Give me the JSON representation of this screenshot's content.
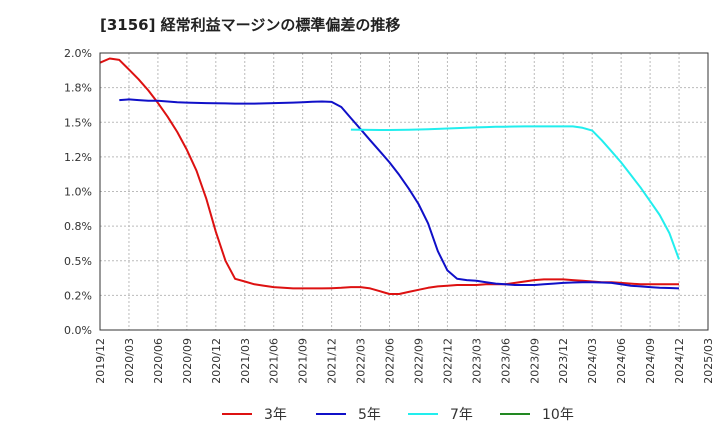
{
  "chart_data": {
    "type": "line",
    "title": "[3156]  経常利益マージンの標準偏差の推移",
    "ylim": [
      0.0,
      2.0
    ],
    "yticks": [
      "0.0%",
      "0.2%",
      "0.5%",
      "0.8%",
      "1.0%",
      "1.2%",
      "1.5%",
      "1.8%",
      "2.0%"
    ],
    "yticks_values": [
      0.0,
      0.25,
      0.5,
      0.75,
      1.0,
      1.25,
      1.5,
      1.75,
      2.0
    ],
    "xticks": [
      "2019/12",
      "2020/03",
      "2020/06",
      "2020/09",
      "2020/12",
      "2021/03",
      "2021/06",
      "2021/09",
      "2021/12",
      "2022/03",
      "2022/06",
      "2022/09",
      "2022/12",
      "2023/03",
      "2023/06",
      "2023/09",
      "2023/12",
      "2024/03",
      "2024/06",
      "2024/09",
      "2024/12",
      "2025/03"
    ],
    "grid": true,
    "legend_position": "bottom",
    "series": [
      {
        "name": "3年",
        "color": "#dd1111",
        "x": [
          0,
          1,
          2,
          3,
          4,
          5,
          6,
          7,
          8,
          9,
          10,
          11,
          12,
          13,
          14,
          15,
          16,
          17,
          18,
          19,
          20,
          21,
          22,
          23,
          24,
          25,
          26,
          27,
          28,
          29,
          30,
          31,
          32,
          33,
          34,
          35,
          36,
          37,
          38,
          39,
          40,
          41,
          42,
          43,
          44,
          45,
          46,
          47,
          48,
          49,
          50,
          51,
          52,
          53,
          54,
          55,
          56,
          57,
          58,
          59,
          60
        ],
        "values": [
          1.93,
          1.96,
          1.95,
          1.88,
          1.81,
          1.73,
          1.64,
          1.54,
          1.43,
          1.3,
          1.15,
          0.95,
          0.71,
          0.5,
          0.37,
          0.35,
          0.33,
          0.32,
          0.31,
          0.305,
          0.3,
          0.3,
          0.3,
          0.3,
          0.302,
          0.305,
          0.31,
          0.31,
          0.3,
          0.28,
          0.26,
          0.26,
          0.275,
          0.29,
          0.305,
          0.315,
          0.32,
          0.325,
          0.325,
          0.325,
          0.33,
          0.33,
          0.33,
          0.34,
          0.35,
          0.36,
          0.365,
          0.365,
          0.365,
          0.36,
          0.355,
          0.35,
          0.345,
          0.345,
          0.34,
          0.335,
          0.33,
          0.33,
          0.33,
          0.33,
          0.33
        ]
      },
      {
        "name": "5年",
        "color": "#1010c8",
        "x": [
          2,
          3,
          4,
          5,
          6,
          7,
          8,
          9,
          10,
          11,
          12,
          13,
          14,
          15,
          16,
          17,
          18,
          19,
          20,
          21,
          22,
          23,
          24,
          25,
          26,
          27,
          28,
          29,
          30,
          31,
          32,
          33,
          34,
          35,
          36,
          37,
          38,
          39,
          40,
          41,
          42,
          43,
          44,
          45,
          46,
          47,
          48,
          49,
          50,
          51,
          52,
          53,
          54,
          55,
          56,
          57,
          58,
          59,
          60
        ],
        "values": [
          1.66,
          1.665,
          1.66,
          1.655,
          1.655,
          1.65,
          1.645,
          1.642,
          1.64,
          1.638,
          1.637,
          1.636,
          1.635,
          1.635,
          1.635,
          1.636,
          1.638,
          1.64,
          1.642,
          1.645,
          1.648,
          1.65,
          1.647,
          1.61,
          1.53,
          1.45,
          1.37,
          1.29,
          1.21,
          1.12,
          1.02,
          0.91,
          0.77,
          0.57,
          0.43,
          0.37,
          0.36,
          0.355,
          0.345,
          0.335,
          0.33,
          0.325,
          0.325,
          0.325,
          0.33,
          0.335,
          0.34,
          0.343,
          0.345,
          0.345,
          0.343,
          0.34,
          0.33,
          0.32,
          0.315,
          0.31,
          0.305,
          0.303,
          0.3
        ]
      },
      {
        "name": "7年",
        "color": "#22eeee",
        "x": [
          26,
          27,
          28,
          29,
          30,
          31,
          32,
          33,
          34,
          35,
          36,
          37,
          38,
          39,
          40,
          41,
          42,
          43,
          44,
          45,
          46,
          47,
          48,
          49,
          50,
          51,
          52,
          53,
          54,
          55,
          56,
          57,
          58,
          59,
          60
        ],
        "values": [
          1.447,
          1.446,
          1.445,
          1.444,
          1.444,
          1.445,
          1.446,
          1.448,
          1.45,
          1.452,
          1.455,
          1.458,
          1.46,
          1.463,
          1.465,
          1.467,
          1.468,
          1.469,
          1.47,
          1.47,
          1.47,
          1.47,
          1.47,
          1.47,
          1.46,
          1.44,
          1.37,
          1.29,
          1.21,
          1.12,
          1.03,
          0.93,
          0.83,
          0.7,
          0.51
        ]
      },
      {
        "name": "10年",
        "color": "#228822",
        "x": [],
        "values": []
      }
    ]
  }
}
